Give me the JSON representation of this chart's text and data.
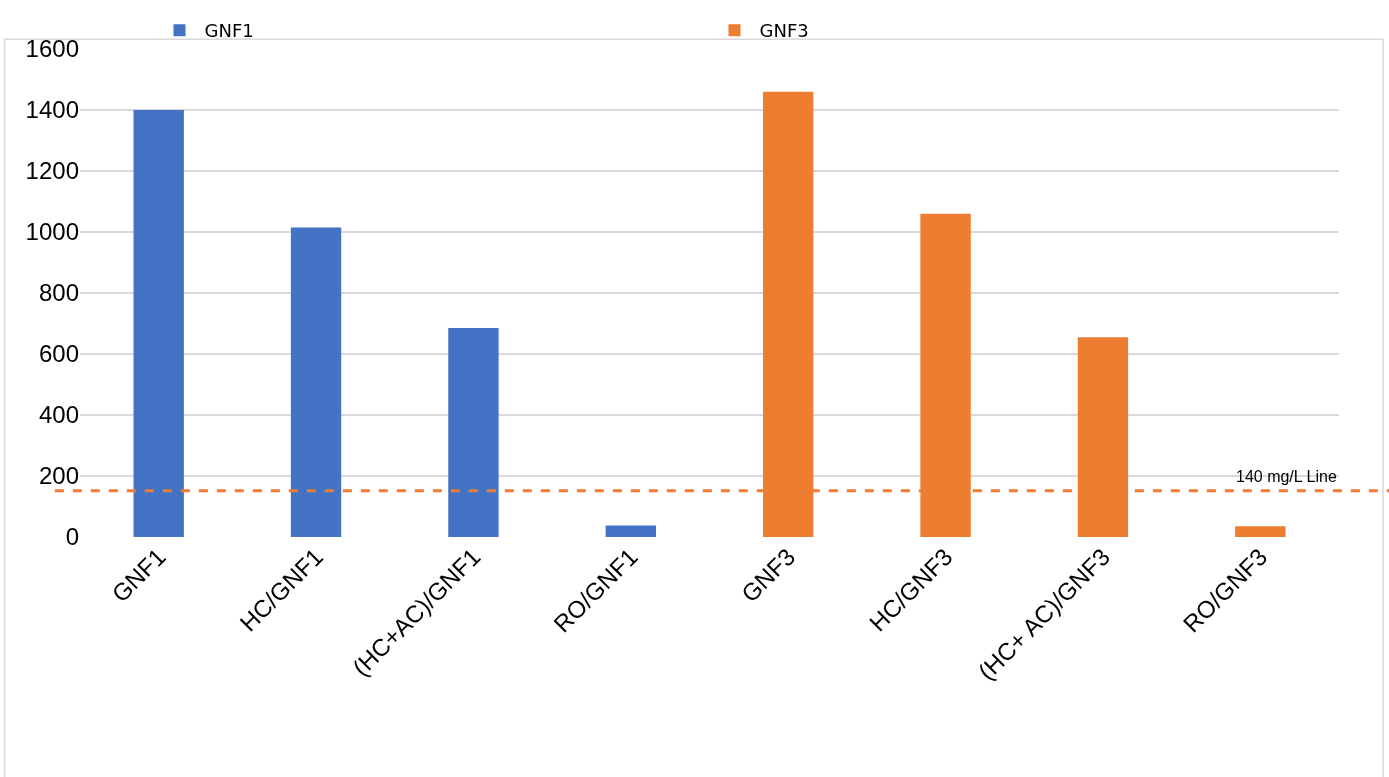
{
  "chart_data": {
    "type": "bar",
    "categories": [
      "GNF1",
      "HC/GNF1",
      "(HC+AC)/GNF1",
      "RO/GNF1",
      "GNF3",
      "HC/GNF3",
      "(HC+ AC)/GNF3",
      "RO/GNF3"
    ],
    "series": [
      {
        "name": "GNF1",
        "color": "#4472c4",
        "values": [
          1400,
          1015,
          685,
          38,
          null,
          null,
          null,
          null
        ]
      },
      {
        "name": "GNF3",
        "color": "#ed7d31",
        "values": [
          null,
          null,
          null,
          null,
          1460,
          1060,
          655,
          35
        ]
      }
    ],
    "ylim": [
      0,
      1600
    ],
    "yticks": [
      0,
      200,
      400,
      600,
      800,
      1000,
      1200,
      1400,
      1600
    ],
    "grid": "y",
    "legend": "top",
    "ref_lines": [
      {
        "axis": "y",
        "value": 152,
        "label": "140 mg/L Line",
        "color": "#ed7d31",
        "line_style": "dashed"
      }
    ]
  }
}
